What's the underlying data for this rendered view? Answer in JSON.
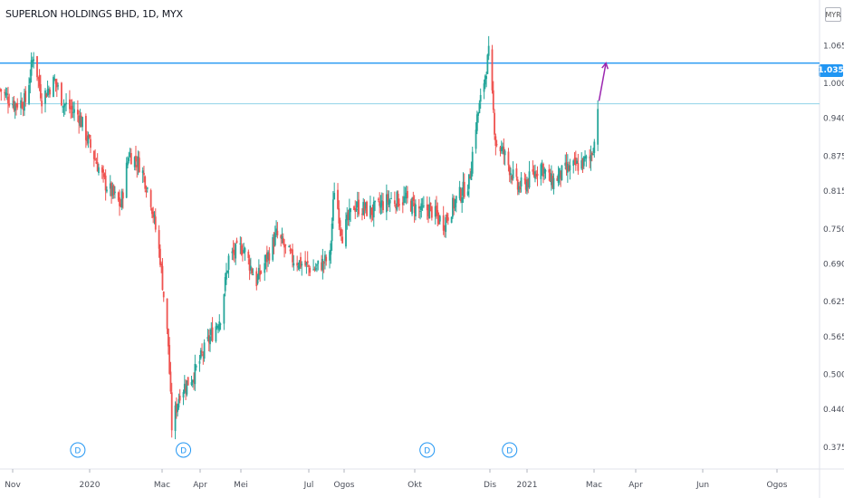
{
  "header": {
    "title": "SUPERLON HOLDINGS BHD, 1D, MYX",
    "currency": "MYR"
  },
  "colors": {
    "up": "#26a69a",
    "down": "#ef5350",
    "level_line": "#2196f3",
    "support_line": "#8fd3e8",
    "arrow": "#9c27b0",
    "axis_text": "#4a4e59",
    "marker": "#2196f3"
  },
  "price_badge": {
    "label": "1.035",
    "color": "#2196f3"
  },
  "dividend_marker": {
    "label": "D"
  },
  "chart_data": {
    "type": "candlestick",
    "title": "SUPERLON HOLDINGS BHD, 1D, MYX",
    "x_ticks": [
      "Nov",
      "2020",
      "Mac",
      "Apr",
      "Mei",
      "Jul",
      "Ogos",
      "Okt",
      "Dis",
      "2021",
      "Mac",
      "Apr",
      "Jun",
      "Ogos"
    ],
    "y_ticks": [
      1.065,
      1.0,
      0.94,
      0.875,
      0.815,
      0.75,
      0.69,
      0.625,
      0.565,
      0.5,
      0.44,
      0.375
    ],
    "ylim": [
      0.35,
      1.12
    ],
    "xlim": [
      "2019-10-24",
      "2021-09-29"
    ],
    "current_price": 1.035,
    "horizontal_lines": [
      {
        "price": 1.035,
        "style": "solid"
      },
      {
        "price": 0.965,
        "style": "solid"
      }
    ],
    "arrow": {
      "from": [
        "2021-03-23",
        0.97
      ],
      "to": [
        "2021-03-29",
        1.035
      ]
    },
    "dividend_dates": [
      "2019-12-30",
      "2020-03-30",
      "2020-10-26",
      "2021-01-05"
    ],
    "price_path": [
      [
        "2019-10-24",
        0.99
      ],
      [
        "2019-11-05",
        0.965
      ],
      [
        "2019-11-15",
        0.97
      ],
      [
        "2019-11-22",
        1.05
      ],
      [
        "2019-11-29",
        0.975
      ],
      [
        "2019-12-10",
        1.005
      ],
      [
        "2019-12-18",
        0.965
      ],
      [
        "2019-12-31",
        0.945
      ],
      [
        "2020-01-10",
        0.89
      ],
      [
        "2020-01-22",
        0.83
      ],
      [
        "2020-02-05",
        0.79
      ],
      [
        "2020-02-12",
        0.88
      ],
      [
        "2020-02-22",
        0.86
      ],
      [
        "2020-03-02",
        0.8
      ],
      [
        "2020-03-10",
        0.7
      ],
      [
        "2020-03-17",
        0.55
      ],
      [
        "2020-03-20",
        0.41
      ],
      [
        "2020-03-27",
        0.47
      ],
      [
        "2020-04-08",
        0.5
      ],
      [
        "2020-04-20",
        0.555
      ],
      [
        "2020-05-01",
        0.6
      ],
      [
        "2020-05-08",
        0.7
      ],
      [
        "2020-05-20",
        0.72
      ],
      [
        "2020-06-01",
        0.66
      ],
      [
        "2020-06-10",
        0.7
      ],
      [
        "2020-06-18",
        0.74
      ],
      [
        "2020-07-01",
        0.7
      ],
      [
        "2020-07-20",
        0.68
      ],
      [
        "2020-08-03",
        0.7
      ],
      [
        "2020-08-07",
        0.82
      ],
      [
        "2020-08-14",
        0.74
      ],
      [
        "2020-08-24",
        0.79
      ],
      [
        "2020-09-08",
        0.78
      ],
      [
        "2020-09-23",
        0.8
      ],
      [
        "2020-10-07",
        0.8
      ],
      [
        "2020-10-21",
        0.78
      ],
      [
        "2020-10-28",
        0.785
      ],
      [
        "2020-11-09",
        0.76
      ],
      [
        "2020-11-20",
        0.8
      ],
      [
        "2020-12-01",
        0.83
      ],
      [
        "2020-12-07",
        0.93
      ],
      [
        "2020-12-11",
        0.97
      ],
      [
        "2020-12-18",
        1.05
      ],
      [
        "2020-12-24",
        0.9
      ],
      [
        "2020-12-31",
        0.88
      ],
      [
        "2021-01-12",
        0.82
      ],
      [
        "2021-01-20",
        0.83
      ],
      [
        "2021-02-01",
        0.86
      ],
      [
        "2021-02-10",
        0.83
      ],
      [
        "2021-02-22",
        0.85
      ],
      [
        "2021-03-05",
        0.86
      ],
      [
        "2021-03-15",
        0.87
      ],
      [
        "2021-03-19",
        0.9
      ],
      [
        "2021-03-22",
        0.965
      ]
    ]
  }
}
